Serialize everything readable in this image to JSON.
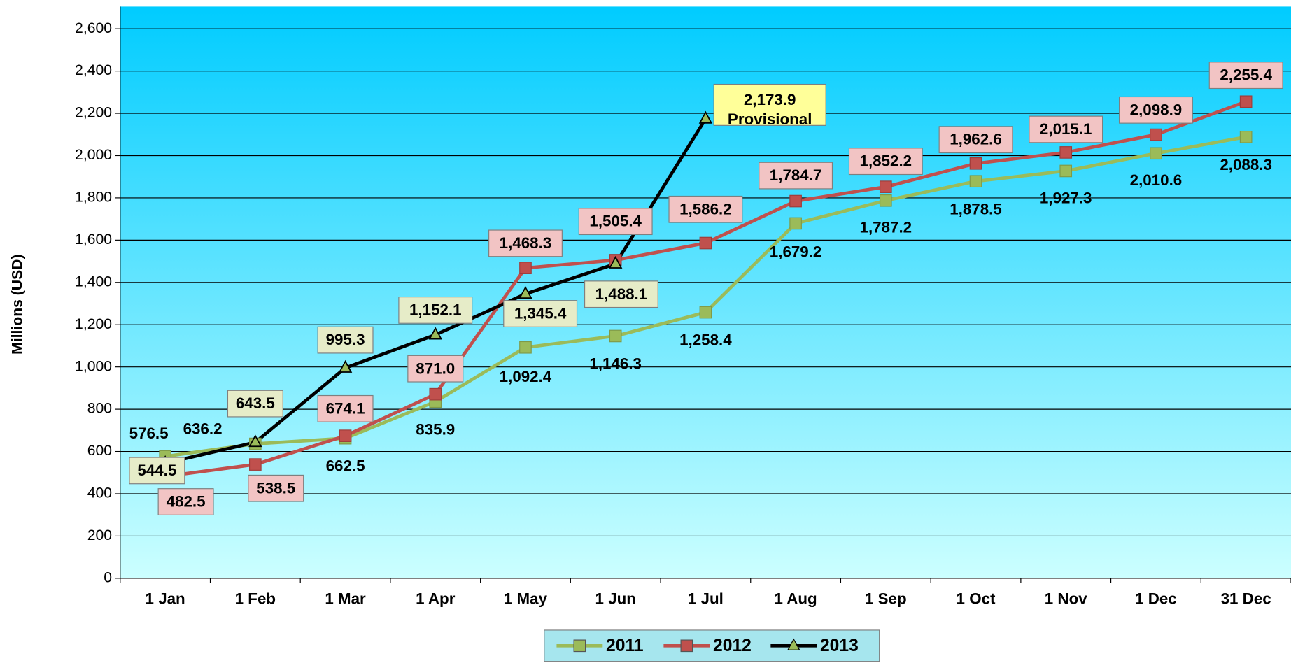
{
  "chart_data": {
    "type": "line",
    "y_label": "Millions (USD)",
    "categories": [
      "1 Jan",
      "1 Feb",
      "1 Mar",
      "1 Apr",
      "1 May",
      "1 Jun",
      "1 Jul",
      "1 Aug",
      "1 Sep",
      "1 Oct",
      "1 Nov",
      "1 Dec",
      "31 Dec"
    ],
    "series": [
      {
        "name": "2011",
        "color": "#9bbb59",
        "marker": "square",
        "values": [
          576.5,
          636.2,
          662.5,
          835.9,
          1092.4,
          1146.3,
          1258.4,
          1679.2,
          1787.2,
          1878.5,
          1927.3,
          2010.6,
          2088.3
        ],
        "value_labels": [
          "576.5",
          "636.2",
          "662.5",
          "835.9",
          "1,092.4",
          "1,146.3",
          "1,258.4",
          "1,679.2",
          "1,787.2",
          "1,878.5",
          "1,927.3",
          "2,010.6",
          "2,088.3"
        ]
      },
      {
        "name": "2012",
        "color": "#c0504d",
        "marker": "square",
        "values": [
          482.5,
          538.5,
          674.1,
          871.0,
          1468.3,
          1505.4,
          1586.2,
          1784.7,
          1852.2,
          1962.6,
          2015.1,
          2098.9,
          2255.4
        ],
        "value_labels": [
          "482.5",
          "538.5",
          "674.1",
          "871.0",
          "1,468.3",
          "1,505.4",
          "1,586.2",
          "1,784.7",
          "1,852.2",
          "1,962.6",
          "2,015.1",
          "2,098.9",
          "2,255.4"
        ]
      },
      {
        "name": "2013",
        "color": "#000000",
        "marker": "triangle",
        "values": [
          544.5,
          643.5,
          995.3,
          1152.1,
          1345.4,
          1488.1,
          2173.9,
          null,
          null,
          null,
          null,
          null,
          null
        ],
        "value_labels": [
          "544.5",
          "643.5",
          "995.3",
          "1,152.1",
          "1,345.4",
          "1,488.1",
          "2,173.9",
          null,
          null,
          null,
          null,
          null,
          null
        ]
      }
    ],
    "annotation": "Provisional",
    "ylim": [
      0,
      2600
    ],
    "yticks": [
      0,
      200,
      400,
      600,
      800,
      1000,
      1200,
      1400,
      1600,
      1800,
      2000,
      2200,
      2400,
      2600
    ],
    "ytick_labels": [
      "0",
      "200",
      "400",
      "600",
      "800",
      "1,000",
      "1,200",
      "1,400",
      "1,600",
      "1,800",
      "2,000",
      "2,200",
      "2,400",
      "2,600"
    ],
    "grid": true,
    "legend": "bottom"
  }
}
